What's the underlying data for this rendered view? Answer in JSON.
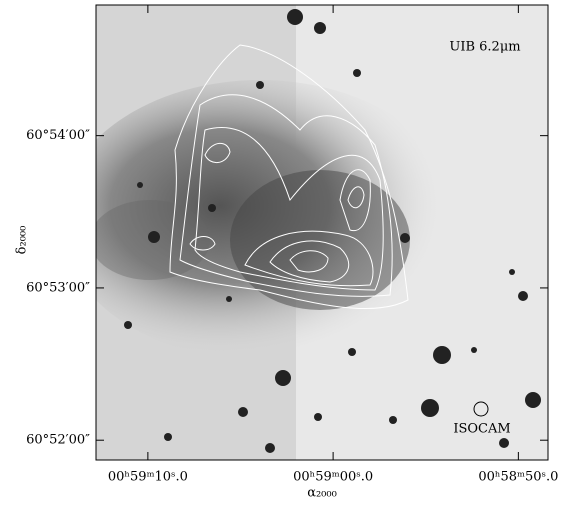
{
  "chart_data": {
    "type": "image",
    "annotation": "UIB 6.2μm",
    "beam_label": "ISOCAM",
    "x_label": "α₂₀₀₀",
    "y_label": "δ₂₀₀₀",
    "xlim": [
      3552.8,
      3528.4
    ],
    "xticks": [
      {
        "value": 3550,
        "label": "00ʰ59ᵐ10ˢ.0"
      },
      {
        "value": 3540,
        "label": "00ʰ59ᵐ00ˢ.0"
      },
      {
        "value": 3530,
        "label": "00ʰ58ᵐ50ˢ.0"
      }
    ],
    "ylim": [
      60.8645,
      60.9143
    ],
    "yticks": [
      {
        "value": 60.866667,
        "label": "60°52′00″"
      },
      {
        "value": 60.883333,
        "label": "60°53′00″"
      },
      {
        "value": 60.9,
        "label": "60°54′00″"
      }
    ]
  }
}
